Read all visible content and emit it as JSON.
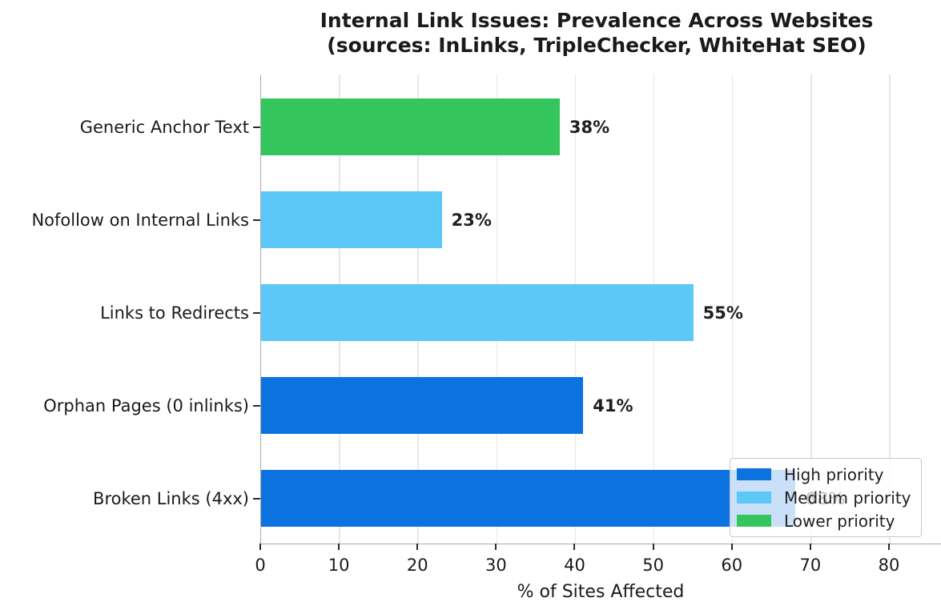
{
  "title": {
    "line1": "Internal Link Issues: Prevalence Across Websites",
    "line2": "(sources: InLinks, TripleChecker, WhiteHat SEO)"
  },
  "chart_data": {
    "type": "bar",
    "orientation": "horizontal",
    "title": "Internal Link Issues: Prevalence Across Websites (sources: InLinks, TripleChecker, WhiteHat SEO)",
    "categories": [
      "Generic Anchor Text",
      "Nofollow on Internal Links",
      "Links to Redirects",
      "Orphan Pages (0 inlinks)",
      "Broken Links (4xx)"
    ],
    "values": [
      38,
      23,
      55,
      41,
      68
    ],
    "value_labels": [
      "38%",
      "23%",
      "55%",
      "41%",
      "68%"
    ],
    "priorities": [
      "lower",
      "medium",
      "medium",
      "high",
      "high"
    ],
    "bar_colors": [
      "#34c65c",
      "#5bc8f8",
      "#5bc8f8",
      "#0b72e0",
      "#0b72e0"
    ],
    "xlabel": "% of Sites Affected",
    "xlim": [
      0,
      86.6
    ],
    "xticks": [
      0,
      10,
      20,
      30,
      40,
      50,
      60,
      70,
      80
    ],
    "grid": true,
    "legend": {
      "position": "lower right",
      "entries": [
        {
          "label": "High priority",
          "color": "#0b72e0"
        },
        {
          "label": "Medium priority",
          "color": "#5bc8f8"
        },
        {
          "label": "Lower priority",
          "color": "#34c65c"
        }
      ]
    },
    "colors": {
      "high_priority": "#0b72e0",
      "medium_priority": "#5bc8f8",
      "lower_priority": "#34c65c",
      "spine": "#ababab",
      "gridline": "#e7e7e7",
      "text": "#1a1a1a"
    }
  }
}
